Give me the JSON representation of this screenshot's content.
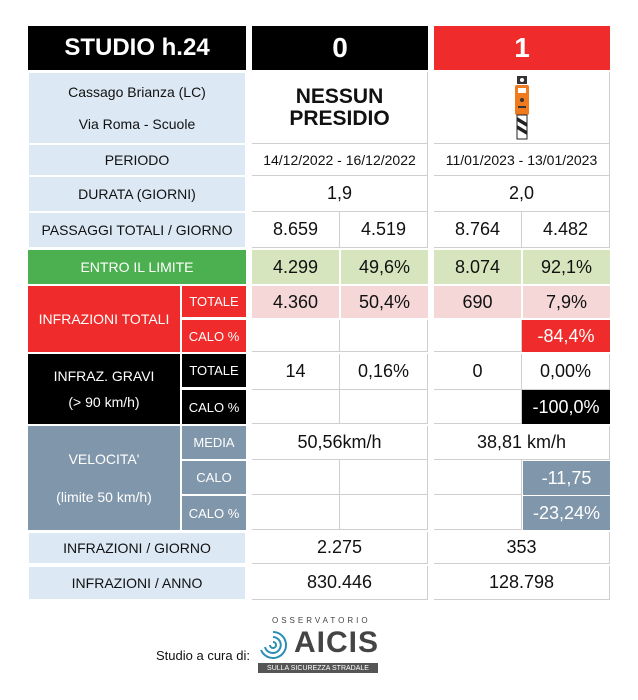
{
  "header": {
    "study": "STUDIO h.24",
    "col0": "0",
    "col1": "1"
  },
  "location": {
    "line1": "Cassago Brianza (LC)",
    "line2": "Via Roma - Scuole"
  },
  "presidio0": {
    "line1": "NESSUN",
    "line2": "PRESIDIO"
  },
  "presidio1": {
    "icon": "speed-camera-box-icon"
  },
  "rows": {
    "periodo": {
      "label": "PERIODO",
      "v0": "14/12/2022 - 16/12/2022",
      "v1": "11/01/2023 - 13/01/2023"
    },
    "durata": {
      "label": "DURATA (GIORNI)",
      "v0": "1,9",
      "v1": "2,0"
    },
    "passaggi": {
      "label": "PASSAGGI TOTALI / GIORNO",
      "a0": "8.659",
      "b0": "4.519",
      "a1": "8.764",
      "b1": "4.482"
    },
    "entro": {
      "label": "ENTRO IL LIMITE",
      "a0": "4.299",
      "b0": "49,6%",
      "a1": "8.074",
      "b1": "92,1%"
    },
    "infrazioni_totali": {
      "label": "INFRAZIONI TOTALI",
      "sub1": "TOTALE",
      "sub2": "CALO %",
      "a0": "4.360",
      "b0": "50,4%",
      "a1": "690",
      "b1": "7,9%",
      "calo1": "-84,4%"
    },
    "gravi": {
      "label1": "INFRAZ. GRAVI",
      "label2": "(> 90 km/h)",
      "sub1": "TOTALE",
      "sub2": "CALO %",
      "a0": "14",
      "b0": "0,16%",
      "a1": "0",
      "b1": "0,00%",
      "calo1": "-100,0%"
    },
    "velocita": {
      "label1": "VELOCITA'",
      "label2": "(limite 50 km/h)",
      "sub1": "MEDIA",
      "sub2": "CALO",
      "sub3": "CALO %",
      "media0": "50,56km/h",
      "media1": "38,81 km/h",
      "calo1": "-11,75",
      "calopct1": "-23,24%"
    },
    "inf_giorno": {
      "label": "INFRAZIONI / GIORNO",
      "v0": "2.275",
      "v1": "353"
    },
    "inf_anno": {
      "label": "INFRAZIONI / ANNO",
      "v0": "830.446",
      "v1": "128.798"
    }
  },
  "footer": {
    "credit": "Studio a cura di:",
    "logo_top": "OSSERVATORIO",
    "logo_main": "AICIS",
    "logo_sub": "SULLA SICUREZZA STRADALE"
  },
  "colors": {
    "red": "#ef2b2b",
    "green": "#4cb050",
    "grey_blue": "#8096ab",
    "label_bg": "#dce8f4"
  }
}
